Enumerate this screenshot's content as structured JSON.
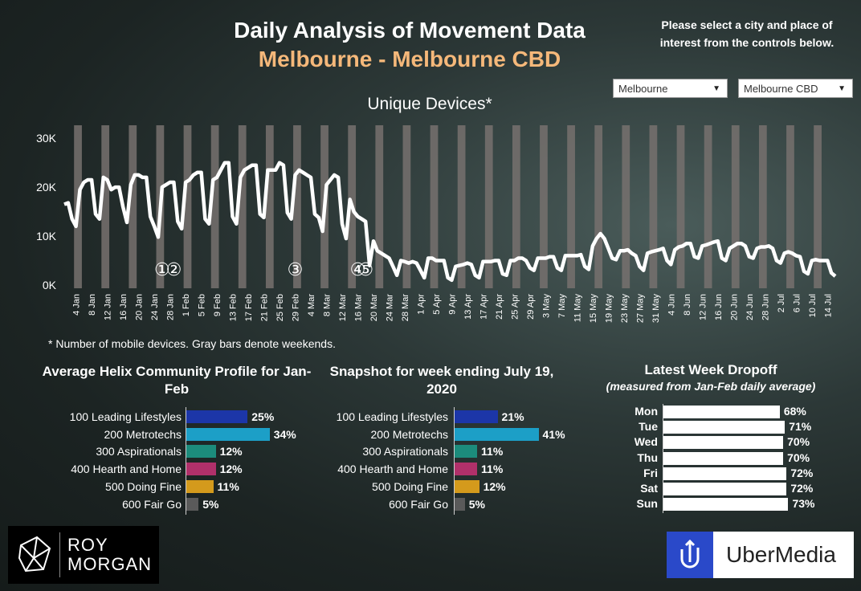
{
  "header": {
    "title": "Daily Analysis of Movement Data",
    "subtitle": "Melbourne - Melbourne CBD",
    "instructions": "Please select a city and place of interest from the controls below."
  },
  "controls": {
    "city": "Melbourne",
    "place": "Melbourne CBD"
  },
  "footnote": "* Number of mobile devices. Gray bars denote weekends.",
  "colors": {
    "line": "#ffffff",
    "weekend_bar": "#77716e",
    "subtitle": "#f5b87a",
    "profile_colors": [
      "#1c36a8",
      "#1c9fc7",
      "#1c8c7c",
      "#b0306a",
      "#d49a1c",
      "#5a5a5a"
    ]
  },
  "chart_data": [
    {
      "type": "line",
      "title": "Unique Devices*",
      "ylim": [
        0,
        32000
      ],
      "yticks": [
        0,
        10000,
        20000,
        30000
      ],
      "ytick_labels": [
        "0K",
        "10K",
        "20K",
        "30K"
      ],
      "x_labels": [
        "4 Jan",
        "8 Jan",
        "12 Jan",
        "16 Jan",
        "20 Jan",
        "24 Jan",
        "28 Jan",
        "1 Feb",
        "5 Feb",
        "9 Feb",
        "13 Feb",
        "17 Feb",
        "21 Feb",
        "25 Feb",
        "29 Feb",
        "4 Mar",
        "8 Mar",
        "12 Mar",
        "16 Mar",
        "20 Mar",
        "24 Mar",
        "28 Mar",
        "1 Apr",
        "5 Apr",
        "9 Apr",
        "13 Apr",
        "17 Apr",
        "21 Apr",
        "25 Apr",
        "29 Apr",
        "3 May",
        "7 May",
        "11 May",
        "15 May",
        "19 May",
        "23 May",
        "27 May",
        "31 May",
        "4 Jun",
        "8 Jun",
        "12 Jun",
        "16 Jun",
        "20 Jun",
        "24 Jun",
        "28 Jun",
        "2 Jul",
        "6 Jul",
        "10 Jul",
        "14 Jul"
      ],
      "start_date": "1 Jan",
      "end_date": "19 Jul",
      "weekends_shaded": true,
      "annotations": [
        {
          "label": "①",
          "date": "26 Jan"
        },
        {
          "label": "②",
          "date": "29 Jan"
        },
        {
          "label": "③",
          "date": "29 Feb"
        },
        {
          "label": "④",
          "date": "16 Mar"
        },
        {
          "label": "⑤",
          "date": "18 Mar"
        }
      ],
      "values": [
        16500,
        16800,
        13500,
        12000,
        19500,
        21000,
        21500,
        21500,
        14500,
        13500,
        22000,
        21500,
        19500,
        20000,
        20000,
        16000,
        12800,
        20500,
        22500,
        22500,
        22000,
        22000,
        14000,
        12000,
        9800,
        20000,
        20500,
        21000,
        21000,
        13000,
        11500,
        21000,
        21500,
        22500,
        23000,
        23000,
        13500,
        12500,
        21500,
        22000,
        23500,
        25000,
        25000,
        14000,
        12500,
        22000,
        23500,
        24000,
        24500,
        24500,
        14500,
        13800,
        23500,
        23500,
        23500,
        25000,
        24500,
        14800,
        13500,
        22500,
        23500,
        23000,
        22500,
        22000,
        14500,
        13800,
        11000,
        20500,
        21500,
        22500,
        22000,
        12500,
        9500,
        17500,
        15000,
        14000,
        13500,
        13000,
        4000,
        9000,
        7000,
        6500,
        6000,
        5500,
        3800,
        2000,
        5000,
        4800,
        4500,
        4800,
        4500,
        3000,
        1500,
        5500,
        5500,
        5000,
        5000,
        5000,
        1500,
        1000,
        3800,
        4000,
        4200,
        4500,
        4200,
        2000,
        1500,
        4800,
        4800,
        4800,
        5000,
        5000,
        2300,
        2000,
        5000,
        5000,
        5500,
        5500,
        5000,
        3500,
        3000,
        5500,
        5500,
        5500,
        5800,
        5800,
        3500,
        3000,
        6000,
        6000,
        6000,
        6000,
        6200,
        3800,
        3200,
        8000,
        9500,
        10500,
        9500,
        7500,
        5500,
        5200,
        7000,
        7000,
        7200,
        6500,
        6000,
        3800,
        3000,
        6500,
        6800,
        7000,
        7200,
        7500,
        5000,
        4200,
        7200,
        7800,
        8000,
        8500,
        8500,
        5800,
        5500,
        8000,
        8200,
        8500,
        8800,
        9000,
        5500,
        5000,
        7500,
        8000,
        8500,
        8500,
        8000,
        5800,
        5500,
        7500,
        7800,
        7800,
        8000,
        7500,
        5000,
        4500,
        6500,
        6800,
        6500,
        6000,
        5800,
        2800,
        2300,
        5000,
        5200,
        5000,
        5000,
        5000,
        2500,
        1800
      ]
    },
    {
      "type": "bar",
      "orientation": "horizontal",
      "title": "Average Helix Community Profile for Jan-Feb",
      "categories": [
        "100 Leading Lifestyles",
        "200 Metrotechs",
        "300 Aspirationals",
        "400 Hearth and Home",
        "500 Doing Fine",
        "600 Fair Go"
      ],
      "values": [
        25,
        34,
        12,
        12,
        11,
        5
      ],
      "value_labels": [
        "25%",
        "34%",
        "12%",
        "12%",
        "11%",
        "5%"
      ]
    },
    {
      "type": "bar",
      "orientation": "horizontal",
      "title": "Snapshot for week ending July 19, 2020",
      "categories": [
        "100 Leading Lifestyles",
        "200 Metrotechs",
        "300 Aspirationals",
        "400 Hearth and Home",
        "500 Doing Fine",
        "600 Fair Go"
      ],
      "values": [
        21,
        41,
        11,
        11,
        12,
        5
      ],
      "value_labels": [
        "21%",
        "41%",
        "11%",
        "11%",
        "12%",
        "5%"
      ]
    },
    {
      "type": "bar",
      "orientation": "horizontal",
      "title": "Latest Week Dropoff",
      "subtitle": "(measured from Jan-Feb daily average)",
      "categories": [
        "Mon",
        "Tue",
        "Wed",
        "Thu",
        "Fri",
        "Sat",
        "Sun"
      ],
      "values": [
        68,
        71,
        70,
        70,
        72,
        72,
        73
      ],
      "value_labels": [
        "68%",
        "71%",
        "70%",
        "70%",
        "72%",
        "72%",
        "73%"
      ]
    }
  ],
  "logos": {
    "roy_morgan_line1": "ROY",
    "roy_morgan_line2": "MORGAN",
    "ubermedia": "UberMedia"
  }
}
